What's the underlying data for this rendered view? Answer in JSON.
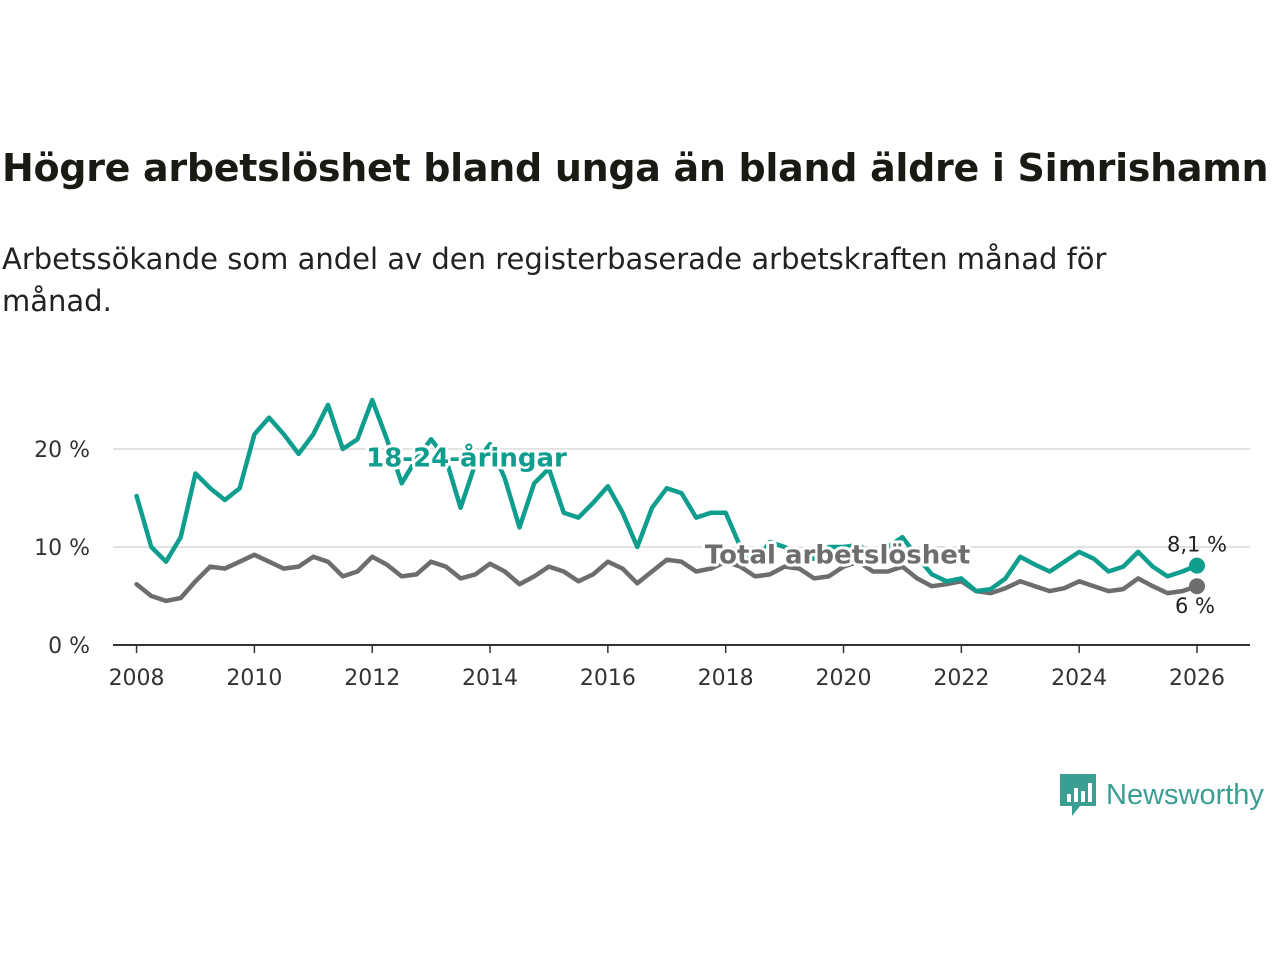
{
  "title": "Högre arbetslöshet bland unga än bland äldre i Simrishamn",
  "subtitle": "Arbetssökande som andel av den registerbaserade arbetskraften månad för månad.",
  "brand": {
    "name": "Newsworthy",
    "icon": "newsworthy-logo-icon",
    "color": "#3a9e93"
  },
  "chart_data": {
    "type": "line",
    "title": "Högre arbetslöshet bland unga än bland äldre i Simrishamn",
    "xlabel": "",
    "ylabel": "",
    "xlim": [
      2007.6,
      2026.9
    ],
    "ylim": [
      0,
      25
    ],
    "grid": true,
    "x_ticks": [
      2008,
      2010,
      2012,
      2014,
      2016,
      2018,
      2020,
      2022,
      2024,
      2026
    ],
    "x_tick_labels": [
      "2008",
      "2010",
      "2012",
      "2014",
      "2016",
      "2018",
      "2020",
      "2022",
      "2024",
      "2026"
    ],
    "y_ticks": [
      0,
      10,
      20
    ],
    "y_tick_labels": [
      "0 %",
      "10 %",
      "20 %"
    ],
    "series": [
      {
        "name": "18-24-åringar",
        "color": "#0f9e8e",
        "end_label": "8,1 %",
        "points": [
          [
            2008.0,
            15.2
          ],
          [
            2008.25,
            10.0
          ],
          [
            2008.5,
            8.5
          ],
          [
            2008.75,
            11.0
          ],
          [
            2009.0,
            17.5
          ],
          [
            2009.25,
            16.0
          ],
          [
            2009.5,
            14.8
          ],
          [
            2009.75,
            16.0
          ],
          [
            2010.0,
            21.5
          ],
          [
            2010.25,
            23.2
          ],
          [
            2010.5,
            21.5
          ],
          [
            2010.75,
            19.5
          ],
          [
            2011.0,
            21.5
          ],
          [
            2011.25,
            24.5
          ],
          [
            2011.5,
            20.0
          ],
          [
            2011.75,
            21.0
          ],
          [
            2012.0,
            25.0
          ],
          [
            2012.25,
            21.0
          ],
          [
            2012.5,
            16.5
          ],
          [
            2012.75,
            19.0
          ],
          [
            2013.0,
            21.0
          ],
          [
            2013.25,
            19.0
          ],
          [
            2013.5,
            14.0
          ],
          [
            2013.75,
            18.5
          ],
          [
            2014.0,
            20.5
          ],
          [
            2014.25,
            17.0
          ],
          [
            2014.5,
            12.0
          ],
          [
            2014.75,
            16.5
          ],
          [
            2015.0,
            18.0
          ],
          [
            2015.25,
            13.5
          ],
          [
            2015.5,
            13.0
          ],
          [
            2015.75,
            14.5
          ],
          [
            2016.0,
            16.2
          ],
          [
            2016.25,
            13.5
          ],
          [
            2016.5,
            10.0
          ],
          [
            2016.75,
            14.0
          ],
          [
            2017.0,
            16.0
          ],
          [
            2017.25,
            15.5
          ],
          [
            2017.5,
            13.0
          ],
          [
            2017.75,
            13.5
          ],
          [
            2018.0,
            13.5
          ],
          [
            2018.25,
            10.0
          ],
          [
            2018.5,
            8.5
          ],
          [
            2018.75,
            10.5
          ],
          [
            2019.0,
            10.0
          ],
          [
            2019.25,
            9.0
          ],
          [
            2019.5,
            8.8
          ],
          [
            2019.75,
            10.0
          ],
          [
            2020.0,
            10.0
          ],
          [
            2020.25,
            10.2
          ],
          [
            2020.5,
            9.2
          ],
          [
            2020.75,
            10.0
          ],
          [
            2021.0,
            11.0
          ],
          [
            2021.25,
            9.0
          ],
          [
            2021.5,
            7.2
          ],
          [
            2021.75,
            6.5
          ],
          [
            2022.0,
            6.8
          ],
          [
            2022.25,
            5.5
          ],
          [
            2022.5,
            5.7
          ],
          [
            2022.75,
            6.8
          ],
          [
            2023.0,
            9.0
          ],
          [
            2023.25,
            8.2
          ],
          [
            2023.5,
            7.5
          ],
          [
            2023.75,
            8.5
          ],
          [
            2024.0,
            9.5
          ],
          [
            2024.25,
            8.8
          ],
          [
            2024.5,
            7.5
          ],
          [
            2024.75,
            8.0
          ],
          [
            2025.0,
            9.5
          ],
          [
            2025.25,
            8.0
          ],
          [
            2025.5,
            7.0
          ],
          [
            2025.75,
            7.5
          ],
          [
            2026.0,
            8.1
          ]
        ]
      },
      {
        "name": "Total arbetslöshet",
        "color": "#6d6d6d",
        "end_label": "6 %",
        "points": [
          [
            2008.0,
            6.2
          ],
          [
            2008.25,
            5.0
          ],
          [
            2008.5,
            4.5
          ],
          [
            2008.75,
            4.8
          ],
          [
            2009.0,
            6.5
          ],
          [
            2009.25,
            8.0
          ],
          [
            2009.5,
            7.8
          ],
          [
            2009.75,
            8.5
          ],
          [
            2010.0,
            9.2
          ],
          [
            2010.25,
            8.5
          ],
          [
            2010.5,
            7.8
          ],
          [
            2010.75,
            8.0
          ],
          [
            2011.0,
            9.0
          ],
          [
            2011.25,
            8.5
          ],
          [
            2011.5,
            7.0
          ],
          [
            2011.75,
            7.5
          ],
          [
            2012.0,
            9.0
          ],
          [
            2012.25,
            8.2
          ],
          [
            2012.5,
            7.0
          ],
          [
            2012.75,
            7.2
          ],
          [
            2013.0,
            8.5
          ],
          [
            2013.25,
            8.0
          ],
          [
            2013.5,
            6.8
          ],
          [
            2013.75,
            7.2
          ],
          [
            2014.0,
            8.3
          ],
          [
            2014.25,
            7.5
          ],
          [
            2014.5,
            6.2
          ],
          [
            2014.75,
            7.0
          ],
          [
            2015.0,
            8.0
          ],
          [
            2015.25,
            7.5
          ],
          [
            2015.5,
            6.5
          ],
          [
            2015.75,
            7.2
          ],
          [
            2016.0,
            8.5
          ],
          [
            2016.25,
            7.8
          ],
          [
            2016.5,
            6.3
          ],
          [
            2016.75,
            7.5
          ],
          [
            2017.0,
            8.7
          ],
          [
            2017.25,
            8.5
          ],
          [
            2017.5,
            7.5
          ],
          [
            2017.75,
            7.8
          ],
          [
            2018.0,
            8.5
          ],
          [
            2018.25,
            8.0
          ],
          [
            2018.5,
            7.0
          ],
          [
            2018.75,
            7.2
          ],
          [
            2019.0,
            8.0
          ],
          [
            2019.25,
            7.8
          ],
          [
            2019.5,
            6.8
          ],
          [
            2019.75,
            7.0
          ],
          [
            2020.0,
            8.0
          ],
          [
            2020.25,
            8.5
          ],
          [
            2020.5,
            7.5
          ],
          [
            2020.75,
            7.5
          ],
          [
            2021.0,
            8.0
          ],
          [
            2021.25,
            6.8
          ],
          [
            2021.5,
            6.0
          ],
          [
            2021.75,
            6.2
          ],
          [
            2022.0,
            6.5
          ],
          [
            2022.25,
            5.5
          ],
          [
            2022.5,
            5.3
          ],
          [
            2022.75,
            5.8
          ],
          [
            2023.0,
            6.5
          ],
          [
            2023.25,
            6.0
          ],
          [
            2023.5,
            5.5
          ],
          [
            2023.75,
            5.8
          ],
          [
            2024.0,
            6.5
          ],
          [
            2024.25,
            6.0
          ],
          [
            2024.5,
            5.5
          ],
          [
            2024.75,
            5.7
          ],
          [
            2025.0,
            6.8
          ],
          [
            2025.25,
            6.0
          ],
          [
            2025.5,
            5.3
          ],
          [
            2025.75,
            5.5
          ],
          [
            2026.0,
            6.0
          ]
        ]
      }
    ],
    "annotations": [
      {
        "text": "18-24-åringar",
        "series": "18-24-åringar",
        "x": 2013.6,
        "y": 18.2
      },
      {
        "text": "Total arbetslöshet",
        "series": "Total arbetslöshet",
        "x": 2019.9,
        "y": 8.3
      }
    ]
  }
}
